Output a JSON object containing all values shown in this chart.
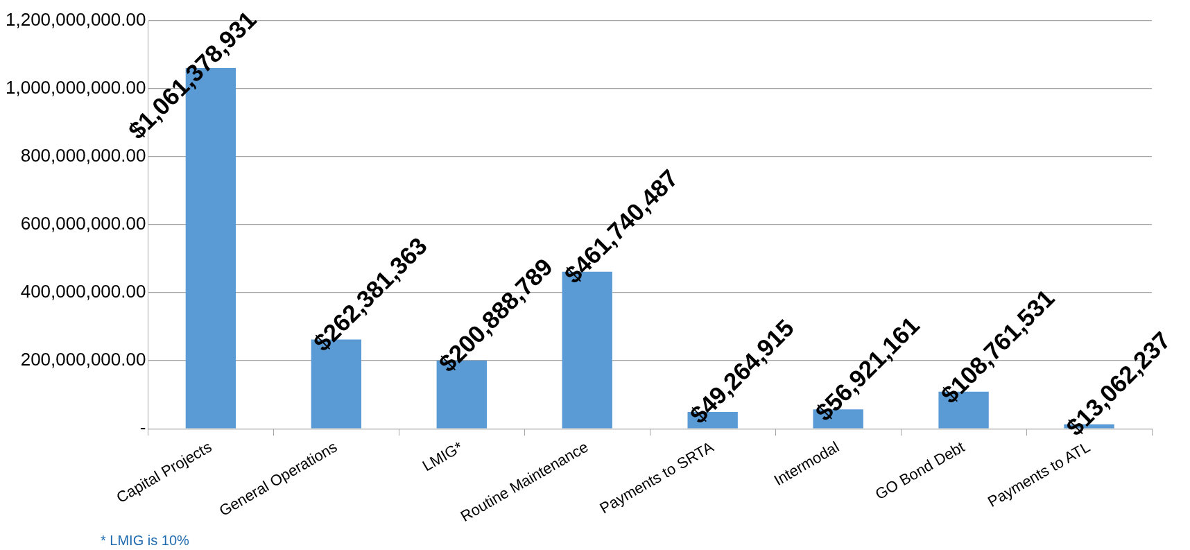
{
  "chart_data": {
    "type": "bar",
    "categories": [
      "Capital Projects",
      "General Operations",
      "LMIG*",
      "Routine Maintenance",
      "Payments to SRTA",
      "Intermodal",
      "GO Bond Debt",
      "Payments to ATL"
    ],
    "values": [
      1061378931,
      262381363,
      200888789,
      461740487,
      49264915,
      56921161,
      108761531,
      13062237
    ],
    "value_labels": [
      "$1,061,378,931",
      "$262,381,363",
      "$200,888,789",
      "$461,740,487",
      "$49,264,915",
      "$56,921,161",
      "$108,761,531",
      "$13,062,237"
    ],
    "color": "#5b9bd5",
    "ylim": [
      0,
      1200000000
    ],
    "yticks": [
      {
        "value": 0,
        "label": "-"
      },
      {
        "value": 200000000,
        "label": "200,000,000.00"
      },
      {
        "value": 400000000,
        "label": "400,000,000.00"
      },
      {
        "value": 600000000,
        "label": "600,000,000.00"
      },
      {
        "value": 800000000,
        "label": "800,000,000.00"
      },
      {
        "value": 1000000000,
        "label": "1,000,000,000.00"
      },
      {
        "value": 1200000000,
        "label": "1,200,000,000.00"
      }
    ],
    "grid": "y",
    "legend": false,
    "annotations": [
      "* LMIG is 10%"
    ]
  }
}
